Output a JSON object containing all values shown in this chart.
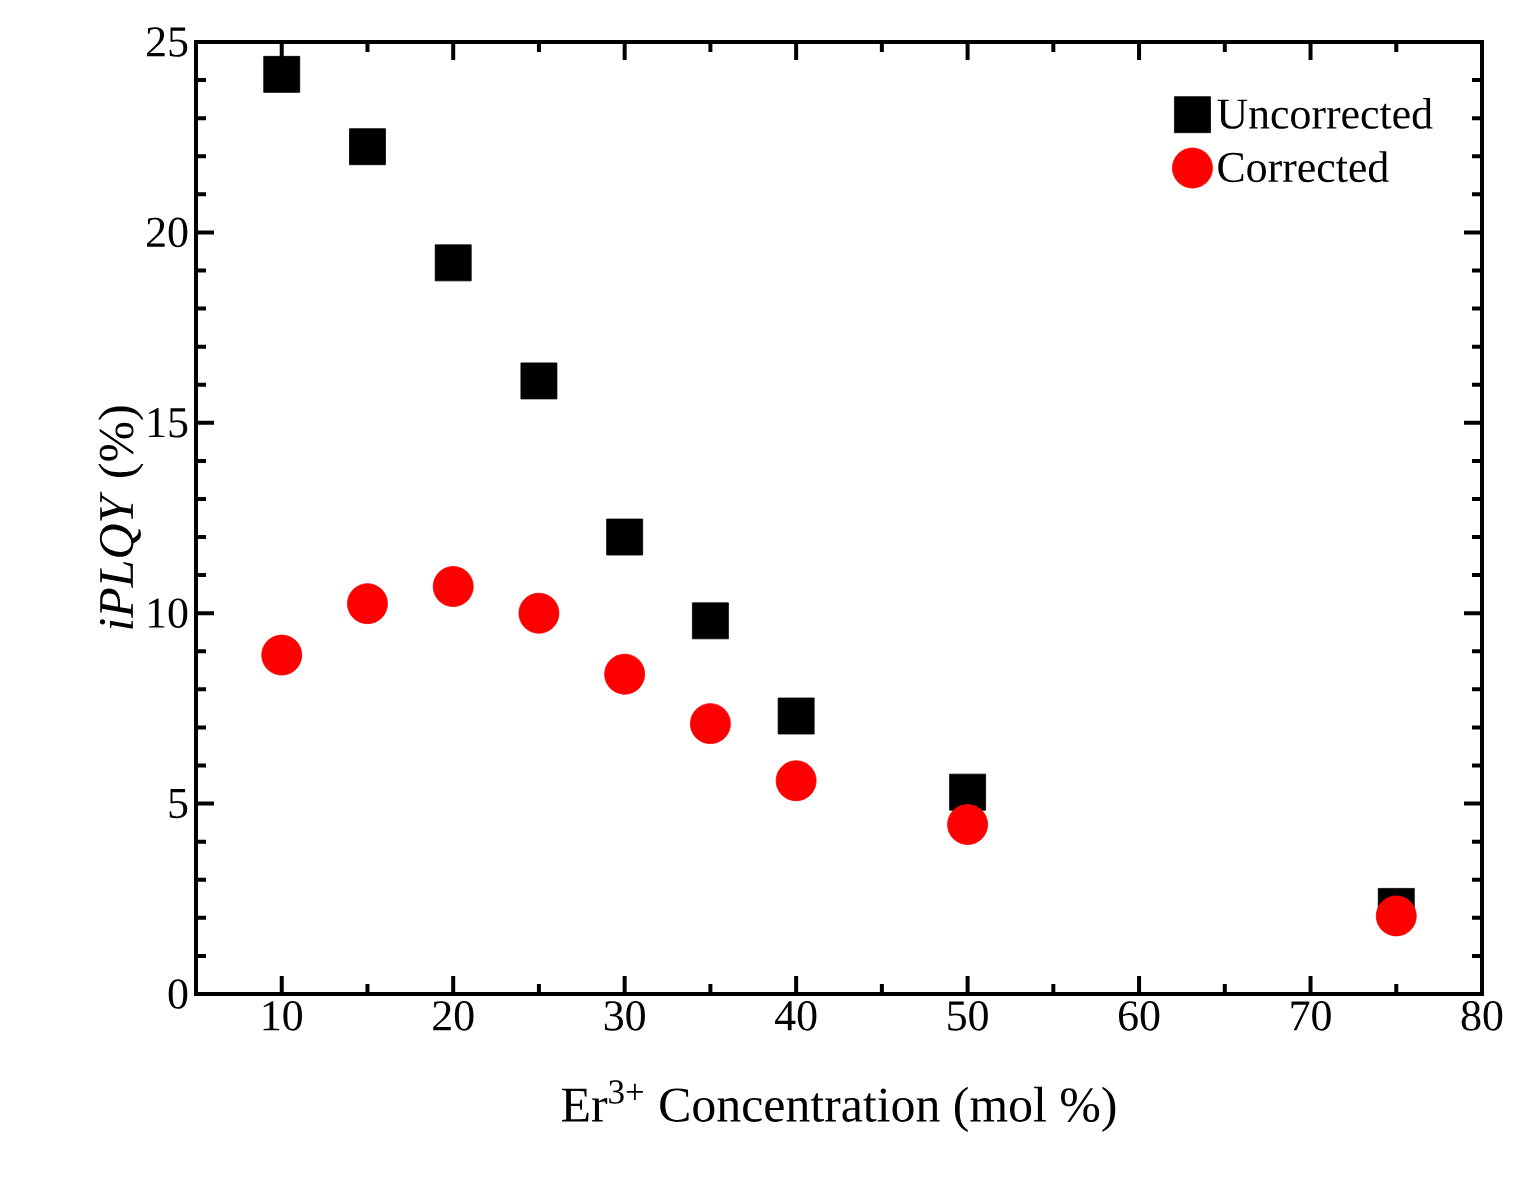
{
  "chart_data": {
    "type": "scatter",
    "xlabel": "Er$^{3+}$ Concentration (mol %)",
    "ylabel": "*iPLQY* (%)",
    "x": [
      10,
      15,
      20,
      25,
      30,
      35,
      40,
      50,
      75
    ],
    "series": [
      {
        "name": "Uncorrected",
        "color": "#000000",
        "marker": "square",
        "values": [
          24.15,
          22.25,
          19.2,
          16.1,
          12.0,
          9.8,
          7.3,
          5.3,
          2.3
        ]
      },
      {
        "name": "Corrected",
        "color": "#ff0000",
        "marker": "circle",
        "values": [
          8.9,
          10.25,
          10.7,
          10.0,
          8.4,
          7.1,
          5.6,
          4.45,
          2.05
        ]
      }
    ],
    "xlim": [
      5,
      80
    ],
    "xticks": [
      10,
      20,
      30,
      40,
      50,
      60,
      70,
      80
    ],
    "ylim": [
      0,
      25
    ],
    "yticks": [
      0,
      5,
      10,
      15,
      20,
      25
    ],
    "grid": false,
    "legend": "top right"
  }
}
